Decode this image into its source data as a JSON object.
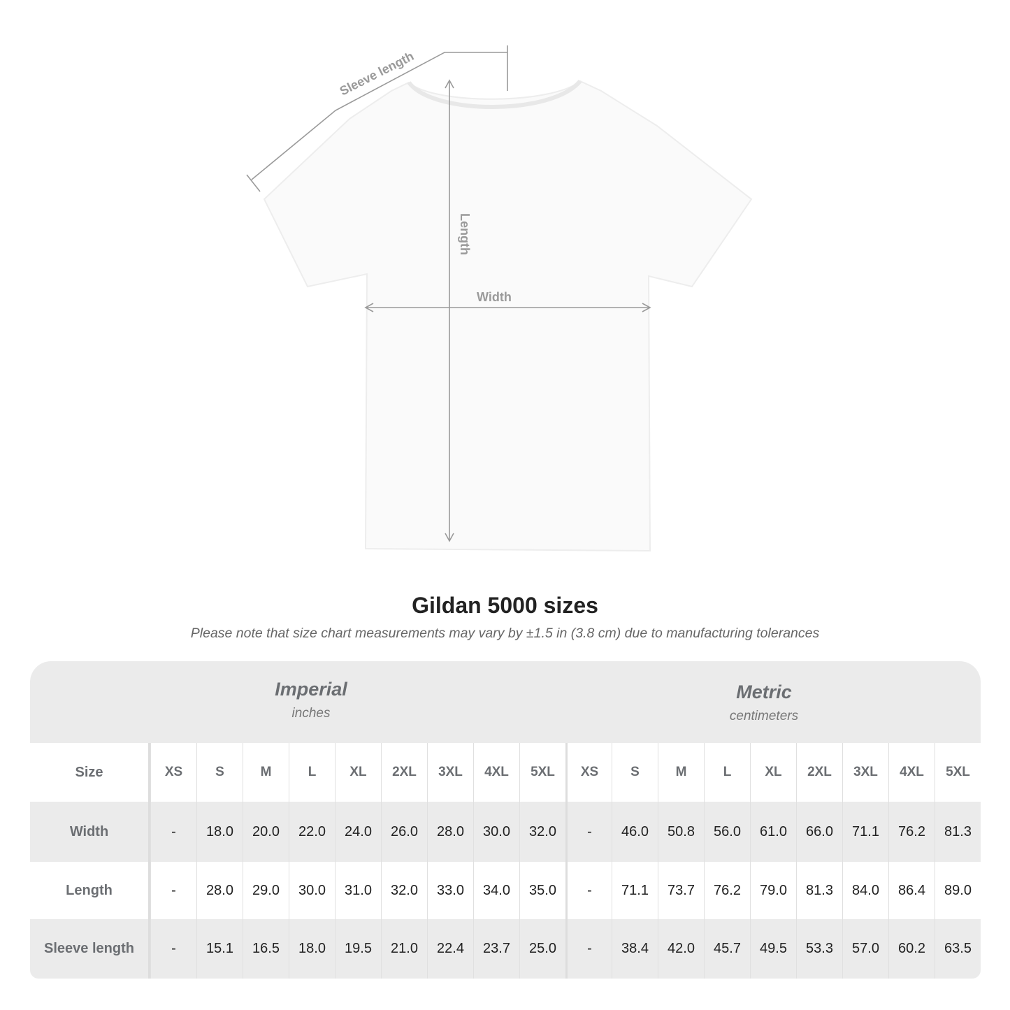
{
  "diagram": {
    "labels": {
      "sleeve": "Sleeve length",
      "length": "Length",
      "width": "Width"
    },
    "colors": {
      "shirt": "#fafafa",
      "measure_line": "#9a9a9a",
      "table_shade": "#ebebeb",
      "header_text": "#6b6e72"
    }
  },
  "title": "Gildan 5000 sizes",
  "note": "Please note that size chart measurements may vary by ±1.5 in (3.8 cm) due to manufacturing tolerances",
  "table": {
    "imperial": {
      "name": "Imperial",
      "unit": "inches"
    },
    "metric": {
      "name": "Metric",
      "unit": "centimeters"
    },
    "size_label": "Size",
    "sizes": [
      "XS",
      "S",
      "M",
      "L",
      "XL",
      "2XL",
      "3XL",
      "4XL",
      "5XL"
    ],
    "rows": [
      {
        "label": "Width",
        "imperial": [
          "-",
          "18.0",
          "20.0",
          "22.0",
          "24.0",
          "26.0",
          "28.0",
          "30.0",
          "32.0"
        ],
        "metric": [
          "-",
          "46.0",
          "50.8",
          "56.0",
          "61.0",
          "66.0",
          "71.1",
          "76.2",
          "81.3"
        ]
      },
      {
        "label": "Length",
        "imperial": [
          "-",
          "28.0",
          "29.0",
          "30.0",
          "31.0",
          "32.0",
          "33.0",
          "34.0",
          "35.0"
        ],
        "metric": [
          "-",
          "71.1",
          "73.7",
          "76.2",
          "79.0",
          "81.3",
          "84.0",
          "86.4",
          "89.0"
        ]
      },
      {
        "label": "Sleeve length",
        "imperial": [
          "-",
          "15.1",
          "16.5",
          "18.0",
          "19.5",
          "21.0",
          "22.4",
          "23.7",
          "25.0"
        ],
        "metric": [
          "-",
          "38.4",
          "42.0",
          "45.7",
          "49.5",
          "53.3",
          "57.0",
          "60.2",
          "63.5"
        ]
      }
    ]
  }
}
